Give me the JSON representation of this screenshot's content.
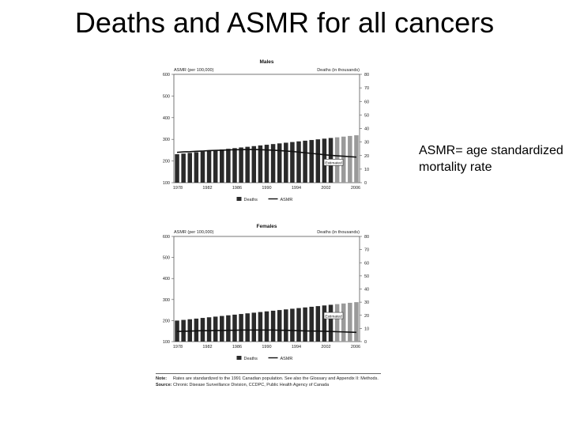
{
  "slide": {
    "title": "Deaths and ASMR for all cancers",
    "note": "ASMR= age standardized mortality rate"
  },
  "colors": {
    "bar": "#2a2a2a",
    "bar_estimated": "#9a9a9a",
    "line": "#111111",
    "axis": "#555555",
    "grid": "#dddddd"
  },
  "chart_data": [
    {
      "type": "bar",
      "title": "Males",
      "left_axis_title": "ASMR (per 100,000)",
      "right_axis_title": "Deaths (in thousands)",
      "left_ticks": [
        600,
        500,
        400,
        300,
        200,
        100
      ],
      "right_ticks": [
        80,
        70,
        60,
        50,
        40,
        30,
        20,
        10,
        0
      ],
      "x_ticks": [
        "1978",
        "1982",
        "1986",
        "1990",
        "1994",
        "2002",
        "2006"
      ],
      "left_ylim": [
        100,
        600
      ],
      "right_ylim": [
        0,
        80
      ],
      "x": [
        1978,
        1979,
        1980,
        1981,
        1982,
        1983,
        1984,
        1985,
        1986,
        1987,
        1988,
        1989,
        1990,
        1991,
        1992,
        1993,
        1994,
        1995,
        1996,
        1997,
        1998,
        1999,
        2000,
        2001,
        2002,
        2003,
        2004,
        2005,
        2006
      ],
      "series": [
        {
          "name": "Deaths",
          "kind": "bar",
          "axis": "right",
          "values": [
            21,
            21.5,
            22,
            22.5,
            23,
            23.5,
            24,
            24.5,
            25,
            25.5,
            26,
            26.5,
            27,
            27.5,
            28,
            28.5,
            29,
            29.5,
            30,
            30.5,
            31,
            31.5,
            32,
            32.5,
            33,
            33.5,
            34,
            34.5,
            35
          ]
        },
        {
          "name": "ASMR",
          "kind": "line",
          "axis": "left",
          "values": [
            240,
            242,
            243,
            245,
            246,
            248,
            249,
            250,
            251,
            252,
            252,
            253,
            253,
            252,
            251,
            250,
            248,
            246,
            244,
            241,
            238,
            235,
            232,
            229,
            226,
            224,
            222,
            220,
            218
          ]
        }
      ],
      "estimated_from": 2003,
      "estimated_label": "Estimated",
      "legend": [
        "Deaths",
        "ASMR"
      ],
      "legend_position": "bottom"
    },
    {
      "type": "bar",
      "title": "Females",
      "left_axis_title": "ASMR (per 100,000)",
      "right_axis_title": "Deaths (in thousands)",
      "left_ticks": [
        600,
        500,
        400,
        300,
        200,
        100
      ],
      "right_ticks": [
        80,
        70,
        60,
        50,
        40,
        30,
        20,
        10,
        0
      ],
      "x_ticks": [
        "1978",
        "1982",
        "1986",
        "1990",
        "1994",
        "2002",
        "2006"
      ],
      "left_ylim": [
        100,
        600
      ],
      "right_ylim": [
        0,
        80
      ],
      "x": [
        1978,
        1979,
        1980,
        1981,
        1982,
        1983,
        1984,
        1985,
        1986,
        1987,
        1988,
        1989,
        1990,
        1991,
        1992,
        1993,
        1994,
        1995,
        1996,
        1997,
        1998,
        1999,
        2000,
        2001,
        2002,
        2003,
        2004,
        2005,
        2006
      ],
      "series": [
        {
          "name": "Deaths",
          "kind": "bar",
          "axis": "right",
          "values": [
            16,
            16.5,
            17,
            17.5,
            18,
            18.5,
            19,
            19.5,
            20,
            20.5,
            21,
            21.5,
            22,
            22.5,
            23,
            23.5,
            24,
            24.5,
            25,
            25.5,
            26,
            26.5,
            27,
            27.5,
            28,
            28.5,
            29,
            29.5,
            30
          ]
        },
        {
          "name": "ASMR",
          "kind": "line",
          "axis": "left",
          "values": [
            148,
            149,
            150,
            151,
            152,
            152,
            153,
            153,
            154,
            154,
            155,
            155,
            155,
            155,
            155,
            155,
            154,
            154,
            153,
            152,
            151,
            150,
            150,
            149,
            148,
            147,
            146,
            145,
            144
          ]
        }
      ],
      "estimated_from": 2003,
      "estimated_label": "Estimated",
      "legend": [
        "Deaths",
        "ASMR"
      ],
      "legend_position": "bottom"
    }
  ],
  "footnotes": [
    {
      "key": "Note:",
      "text": "Rates are standardized to the 1991 Canadian population. See also the Glossary and Appendix II: Methods."
    },
    {
      "key": "Source:",
      "text": "Chronic Disease Surveillance Division, CCDPC, Public Health Agency of Canada"
    }
  ]
}
